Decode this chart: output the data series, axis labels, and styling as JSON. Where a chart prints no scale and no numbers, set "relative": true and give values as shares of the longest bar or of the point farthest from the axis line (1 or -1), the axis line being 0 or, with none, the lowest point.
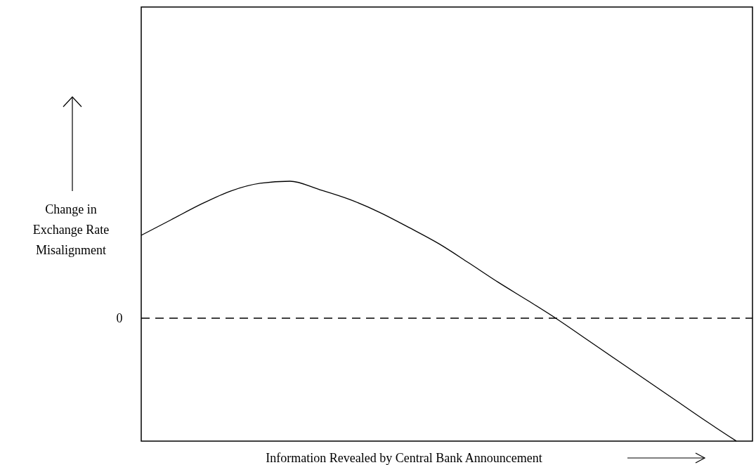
{
  "chart_data": {
    "type": "line",
    "relative": true,
    "xlabel": "Information Revealed by Central Bank Announcement",
    "ylabel": "Change in Exchange Rate Misalignment",
    "categories": [
      null,
      null,
      null,
      null,
      null,
      null,
      null,
      null,
      null,
      null,
      null,
      null,
      null,
      null,
      null,
      null,
      null,
      null,
      null,
      null,
      null
    ],
    "series": [
      {
        "color": "#000000",
        "values": [
          0.605,
          0.718,
          0.831,
          0.928,
          0.985,
          1,
          0.938,
          0.867,
          0.774,
          0.662,
          0.544,
          0.405,
          0.262,
          0.128,
          -0.01,
          -0.159,
          -0.308,
          -0.456,
          -0.605,
          -0.754,
          -0.897
        ]
      }
    ],
    "ref_lines": [
      {
        "axis": "y",
        "value": 0,
        "label": "0",
        "color": "#000000",
        "line_style": "dashed"
      }
    ],
    "grid": false,
    "marker": "none",
    "line_style": "solid"
  }
}
